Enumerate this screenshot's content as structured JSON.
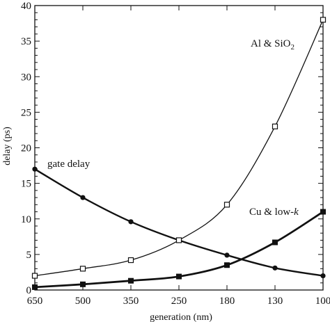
{
  "chart_data": {
    "type": "line",
    "xlabel": "generation (nm)",
    "ylabel": "delay (ps)",
    "categories": [
      "650",
      "500",
      "350",
      "250",
      "180",
      "130",
      "100"
    ],
    "ylim": [
      0,
      40
    ],
    "yticks": [
      "0",
      "5",
      "10",
      "15",
      "20",
      "25",
      "30",
      "35",
      "40"
    ],
    "grid": false,
    "series": [
      {
        "name": "gate delay",
        "marker": "filled-circle",
        "values": [
          17,
          13,
          9.6,
          7,
          4.9,
          3.1,
          2.0
        ]
      },
      {
        "name": "Al & SiO2",
        "marker": "open-square",
        "values": [
          2.0,
          3.0,
          4.2,
          7.0,
          12,
          23,
          38
        ]
      },
      {
        "name": "Cu & low-k",
        "marker": "filled-square",
        "values": [
          0.4,
          0.8,
          1.3,
          1.9,
          3.5,
          6.7,
          11
        ]
      }
    ],
    "annotations": {
      "gate_delay": "gate delay",
      "al_sio2_main": "Al & SiO",
      "al_sio2_sub": "2",
      "cu_main": "Cu & low-",
      "cu_italic": "k"
    }
  }
}
